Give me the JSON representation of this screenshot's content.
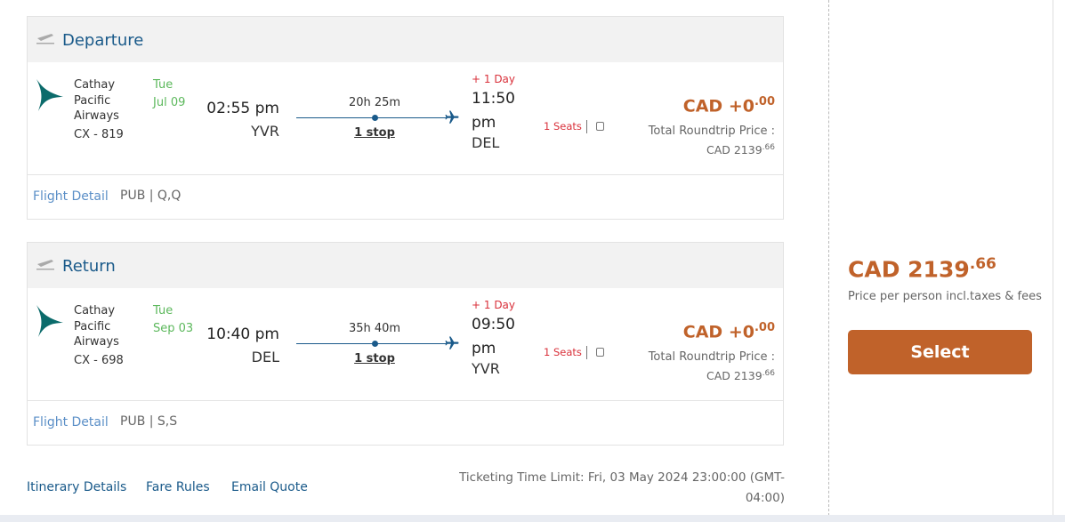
{
  "segments": [
    {
      "direction": "Departure",
      "airline": "Cathay Pacific Airways",
      "flight_number": "CX - 819",
      "day": "Tue",
      "date": "Jul 09",
      "depart_time": "02:55 pm",
      "depart_airport": "YVR",
      "duration": "20h 25m",
      "stops": "1 stop",
      "day_offset": "+ 1 Day",
      "arrive_time": "11:50 pm",
      "arrive_airport": "DEL",
      "seats": "1 Seats",
      "price": "CAD +0",
      "price_cents": ".00",
      "total_label": "Total Roundtrip Price :",
      "total": "CAD 2139",
      "total_cents": ".66",
      "detail_link": "Flight Detail",
      "fare_class": "PUB | Q,Q"
    },
    {
      "direction": "Return",
      "airline": "Cathay Pacific Airways",
      "flight_number": "CX - 698",
      "day": "Tue",
      "date": "Sep 03",
      "depart_time": "10:40 pm",
      "depart_airport": "DEL",
      "duration": "35h 40m",
      "stops": "1 stop",
      "day_offset": "+ 1 Day",
      "arrive_time": "09:50 pm",
      "arrive_airport": "YVR",
      "seats": "1 Seats",
      "price": "CAD +0",
      "price_cents": ".00",
      "total_label": "Total Roundtrip Price :",
      "total": "CAD 2139",
      "total_cents": ".66",
      "detail_link": "Flight Detail",
      "fare_class": "PUB | S,S"
    }
  ],
  "summary": {
    "price": "CAD 2139",
    "price_cents": ".66",
    "note": "Price per person incl.taxes & fees",
    "button": "Select"
  },
  "footer": {
    "links": [
      "Itinerary Details",
      "Fare Rules",
      "Email Quote"
    ],
    "ticketing": "Ticketing Time Limit: Fri, 03 May 2024 23:00:00 (GMT-04:00)"
  }
}
